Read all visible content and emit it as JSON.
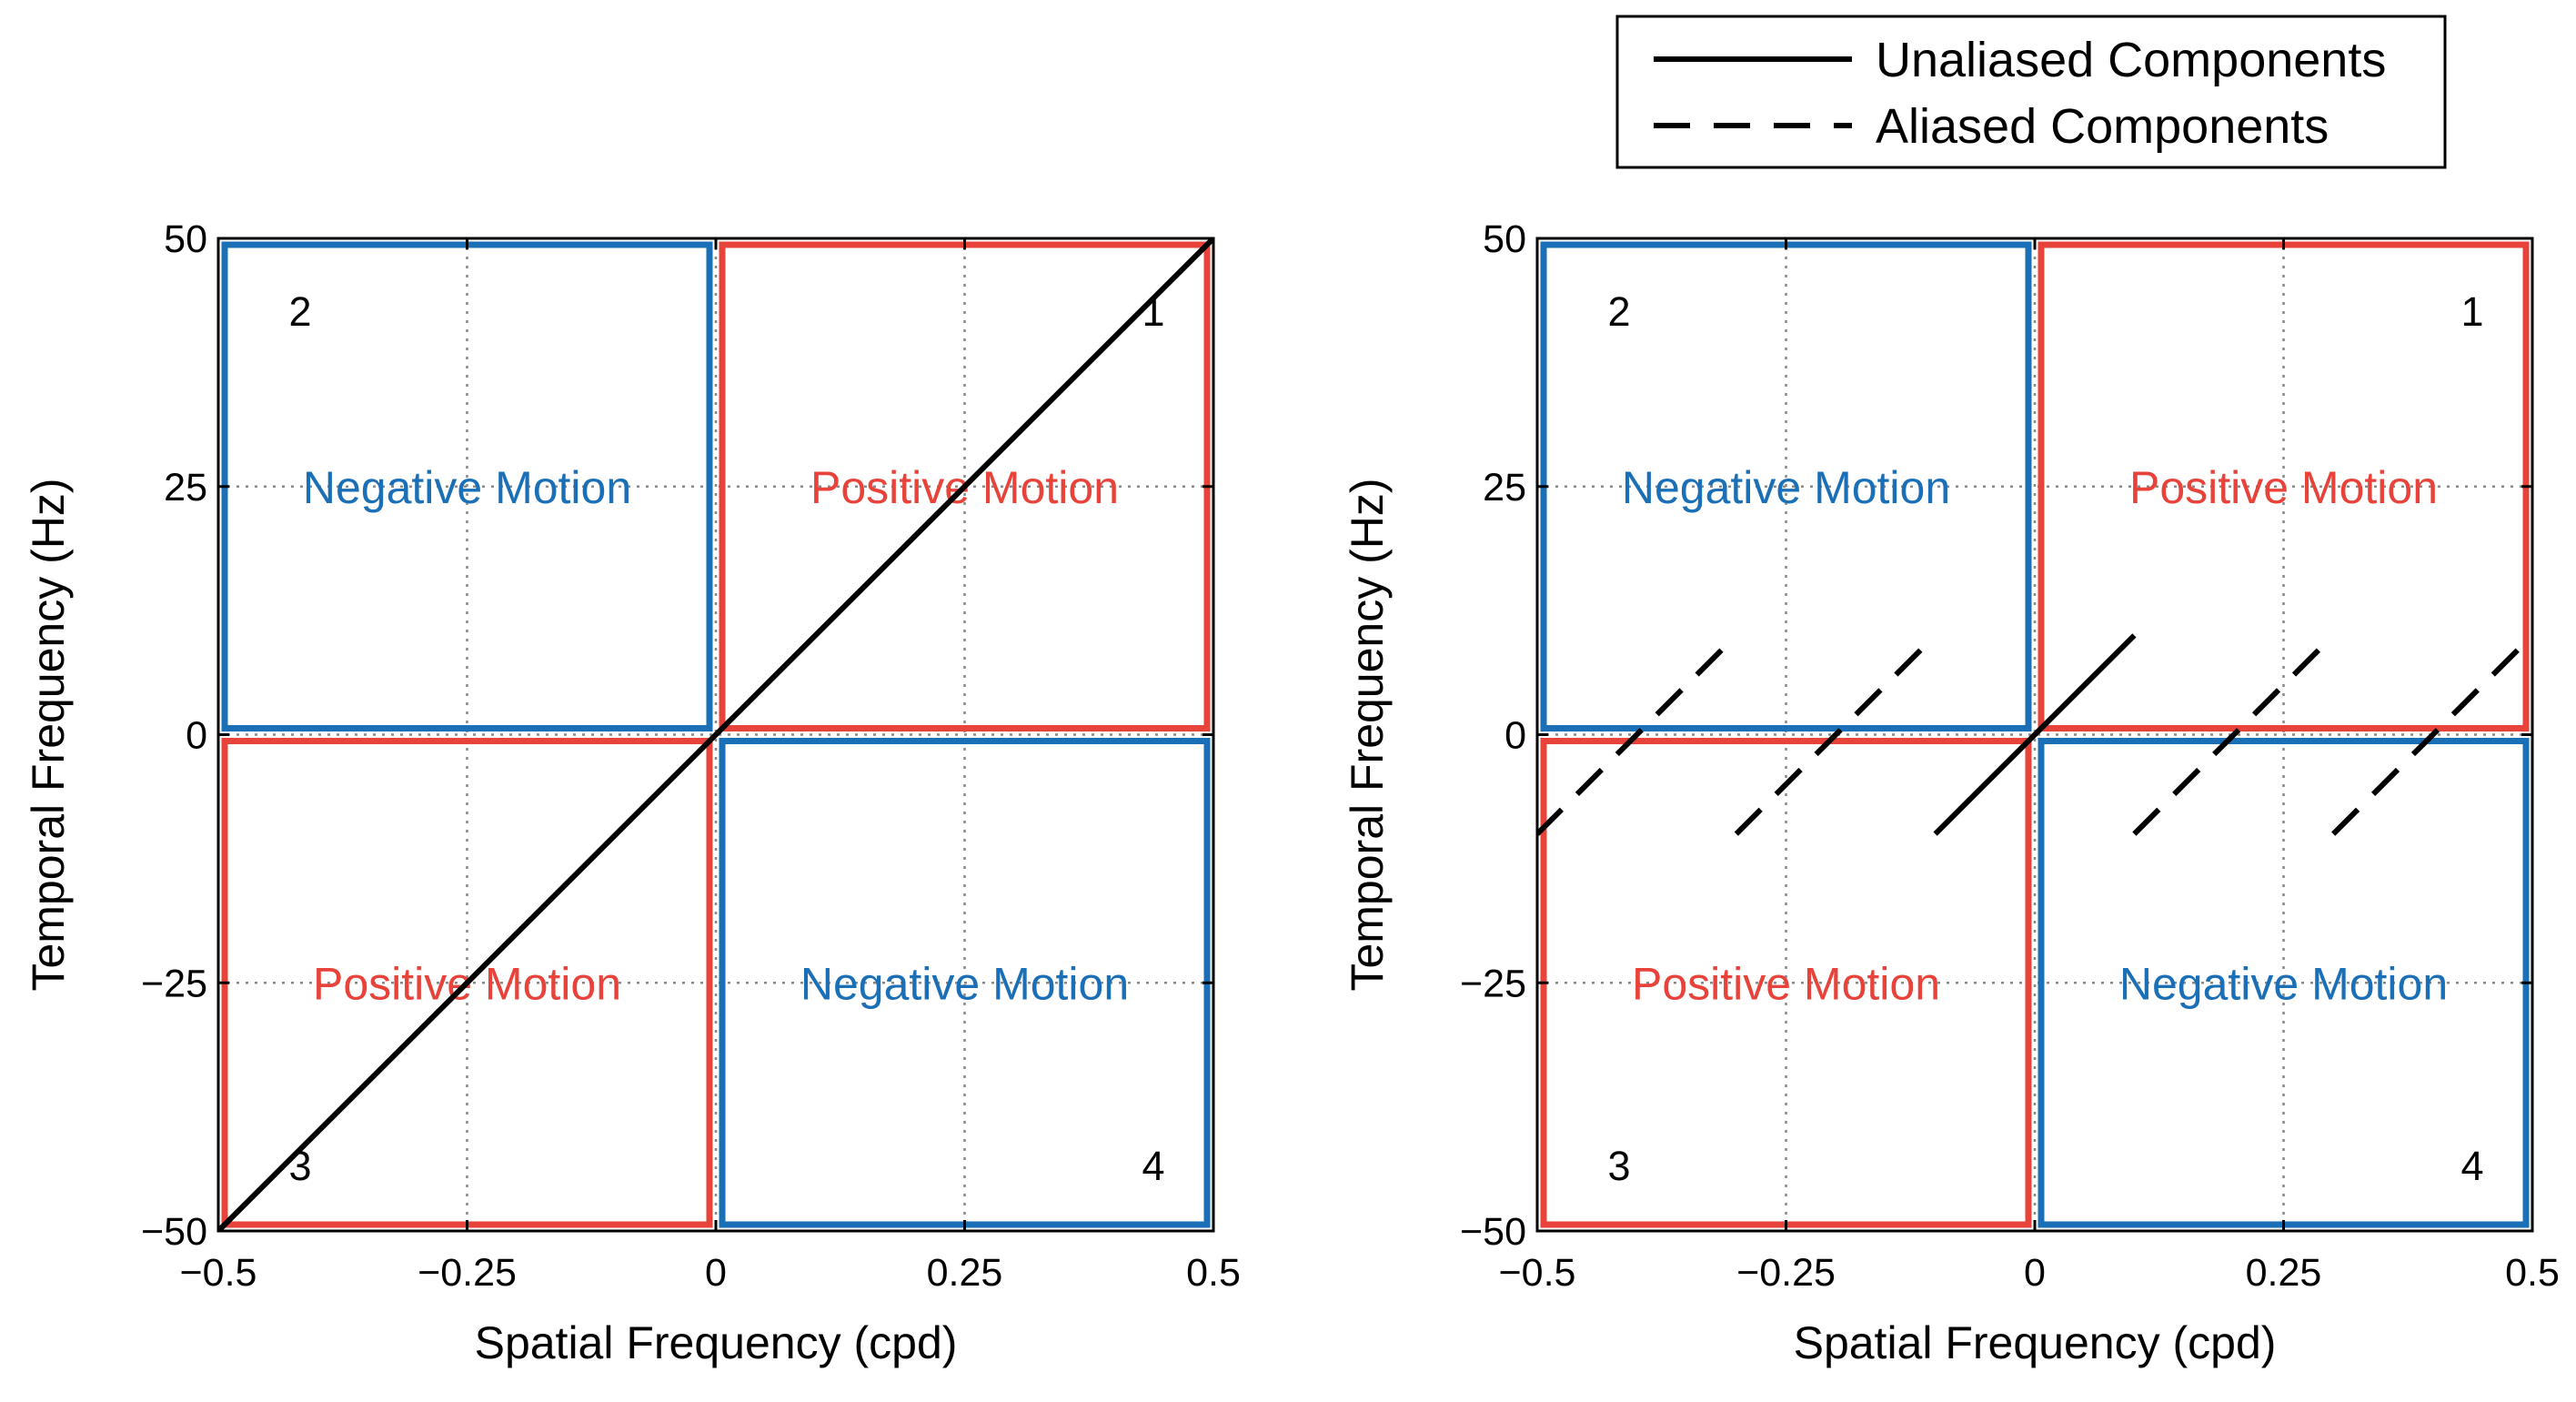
{
  "legend": {
    "items": [
      {
        "label": "Unaliased Components",
        "style": "solid"
      },
      {
        "label": "Aliased Components",
        "style": "dashed"
      }
    ]
  },
  "colors": {
    "positive": "#e8433a",
    "negative": "#1a6fb6",
    "line": "#000000",
    "grid": "#888888"
  },
  "chart_data": [
    {
      "type": "line",
      "xlabel": "Spatial Frequency (cpd)",
      "ylabel": "Temporal Frequency (Hz)",
      "xlim": [
        -0.5,
        0.5
      ],
      "ylim": [
        -50,
        50
      ],
      "xticks": [
        -0.5,
        -0.25,
        0,
        0.25,
        0.5
      ],
      "xtick_labels": [
        "−0.5",
        "−0.25",
        "0",
        "0.25",
        "0.5"
      ],
      "yticks": [
        -50,
        -25,
        0,
        25,
        50
      ],
      "ytick_labels": [
        "−50",
        "−25",
        "0",
        "25",
        "50"
      ],
      "grid": "dotted",
      "quadrants": [
        {
          "number": "1",
          "label": "Positive Motion",
          "kind": "positive",
          "x": [
            0,
            0.5
          ],
          "y": [
            0,
            50
          ]
        },
        {
          "number": "2",
          "label": "Negative Motion",
          "kind": "negative",
          "x": [
            -0.5,
            0
          ],
          "y": [
            0,
            50
          ]
        },
        {
          "number": "3",
          "label": "Positive Motion",
          "kind": "positive",
          "x": [
            -0.5,
            0
          ],
          "y": [
            -50,
            0
          ]
        },
        {
          "number": "4",
          "label": "Negative Motion",
          "kind": "negative",
          "x": [
            0,
            0.5
          ],
          "y": [
            -50,
            0
          ]
        }
      ],
      "series": [
        {
          "name": "Unaliased Components",
          "style": "solid",
          "x": [
            -0.5,
            0.5
          ],
          "y": [
            -50,
            50
          ]
        }
      ]
    },
    {
      "type": "line",
      "xlabel": "Spatial Frequency (cpd)",
      "ylabel": "Temporal Frequency (Hz)",
      "xlim": [
        -0.5,
        0.5
      ],
      "ylim": [
        -50,
        50
      ],
      "xticks": [
        -0.5,
        -0.25,
        0,
        0.25,
        0.5
      ],
      "xtick_labels": [
        "−0.5",
        "−0.25",
        "0",
        "0.25",
        "0.5"
      ],
      "yticks": [
        -50,
        -25,
        0,
        25,
        50
      ],
      "ytick_labels": [
        "−50",
        "−25",
        "0",
        "25",
        "50"
      ],
      "grid": "dotted",
      "quadrants": [
        {
          "number": "1",
          "label": "Positive Motion",
          "kind": "positive",
          "x": [
            0,
            0.5
          ],
          "y": [
            0,
            50
          ]
        },
        {
          "number": "2",
          "label": "Negative Motion",
          "kind": "negative",
          "x": [
            -0.5,
            0
          ],
          "y": [
            0,
            50
          ]
        },
        {
          "number": "3",
          "label": "Positive Motion",
          "kind": "positive",
          "x": [
            -0.5,
            0
          ],
          "y": [
            -50,
            0
          ]
        },
        {
          "number": "4",
          "label": "Negative Motion",
          "kind": "negative",
          "x": [
            0,
            0.5
          ],
          "y": [
            -50,
            0
          ]
        }
      ],
      "series": [
        {
          "name": "Unaliased Components",
          "style": "solid",
          "x": [
            -0.1,
            0.1
          ],
          "y": [
            -10,
            10
          ]
        },
        {
          "name": "Aliased Components",
          "style": "dashed",
          "x": [
            -0.5,
            -0.3
          ],
          "y": [
            -10,
            10
          ]
        },
        {
          "name": "Aliased Components",
          "style": "dashed",
          "x": [
            -0.3,
            -0.1
          ],
          "y": [
            -10,
            10
          ]
        },
        {
          "name": "Aliased Components",
          "style": "dashed",
          "x": [
            0.1,
            0.3
          ],
          "y": [
            -10,
            10
          ]
        },
        {
          "name": "Aliased Components",
          "style": "dashed",
          "x": [
            0.3,
            0.5
          ],
          "y": [
            -10,
            10
          ]
        }
      ]
    }
  ]
}
